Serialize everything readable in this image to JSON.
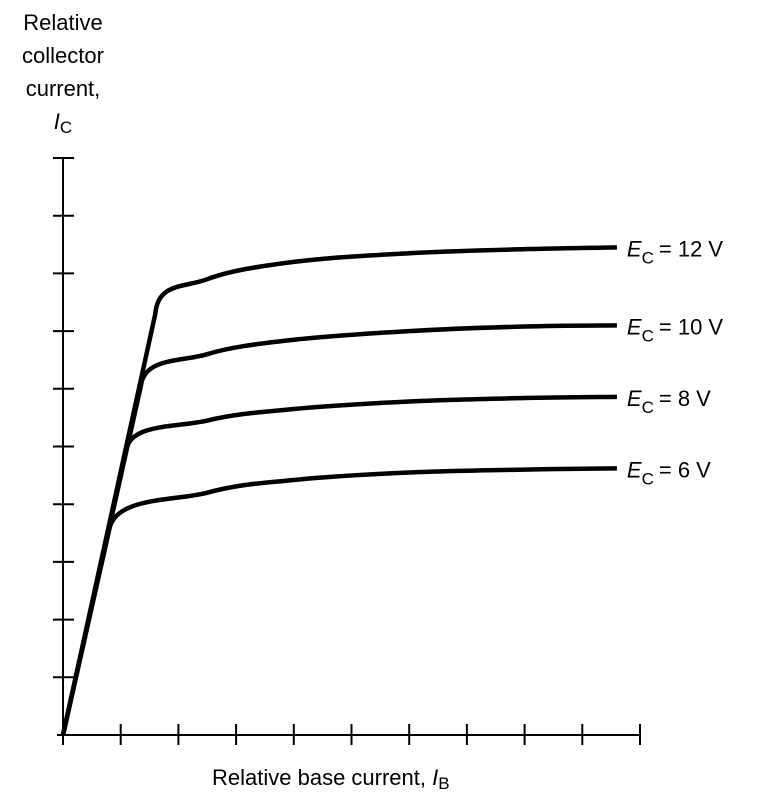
{
  "chart_data": {
    "type": "line",
    "ylabel_lines": [
      "Relative",
      "collector",
      "current,"
    ],
    "ylabel_symbol": "I",
    "ylabel_subscript": "C",
    "xlabel_text": "Relative base current, ",
    "xlabel_symbol": "I",
    "xlabel_subscript": "B",
    "xlim": [
      0,
      10
    ],
    "ylim": [
      0,
      10
    ],
    "x_ticks": [
      0,
      1,
      2,
      3,
      4,
      5,
      6,
      7,
      8,
      9,
      10
    ],
    "y_ticks": [
      0,
      1,
      2,
      3,
      4,
      5,
      6,
      7,
      8,
      9,
      10
    ],
    "tick_labels_shown": false,
    "grid": false,
    "line_color": "#000000",
    "series": [
      {
        "name": "E_C = 12 V",
        "label_symbol": "E",
        "label_subscript": "C",
        "label_value": "= 12 V",
        "knee": [
          1.6,
          7.3
        ],
        "points": [
          [
            0,
            0
          ],
          [
            1.6,
            7.3
          ],
          [
            2.5,
            7.9
          ],
          [
            4,
            8.2
          ],
          [
            6,
            8.35
          ],
          [
            8,
            8.42
          ],
          [
            9.6,
            8.45
          ]
        ]
      },
      {
        "name": "E_C = 10 V",
        "label_symbol": "E",
        "label_subscript": "C",
        "label_value": "= 10 V",
        "knee": [
          1.35,
          6.05
        ],
        "points": [
          [
            0,
            0
          ],
          [
            1.35,
            6.05
          ],
          [
            2.5,
            6.6
          ],
          [
            4,
            6.85
          ],
          [
            6,
            7.0
          ],
          [
            8,
            7.08
          ],
          [
            9.6,
            7.1
          ]
        ]
      },
      {
        "name": "E_C = 8 V",
        "label_symbol": "E",
        "label_subscript": "C",
        "label_value": "= 8 V",
        "knee": [
          1.1,
          4.95
        ],
        "points": [
          [
            0,
            0
          ],
          [
            1.1,
            4.95
          ],
          [
            2.5,
            5.45
          ],
          [
            4,
            5.65
          ],
          [
            6,
            5.78
          ],
          [
            8,
            5.84
          ],
          [
            9.6,
            5.86
          ]
        ]
      },
      {
        "name": "E_C = 6 V",
        "label_symbol": "E",
        "label_subscript": "C",
        "label_value": "= 6 V",
        "knee": [
          0.8,
          3.55
        ],
        "points": [
          [
            0,
            0
          ],
          [
            0.8,
            3.55
          ],
          [
            2.5,
            4.2
          ],
          [
            4,
            4.42
          ],
          [
            6,
            4.55
          ],
          [
            8,
            4.6
          ],
          [
            9.6,
            4.62
          ]
        ]
      }
    ]
  }
}
